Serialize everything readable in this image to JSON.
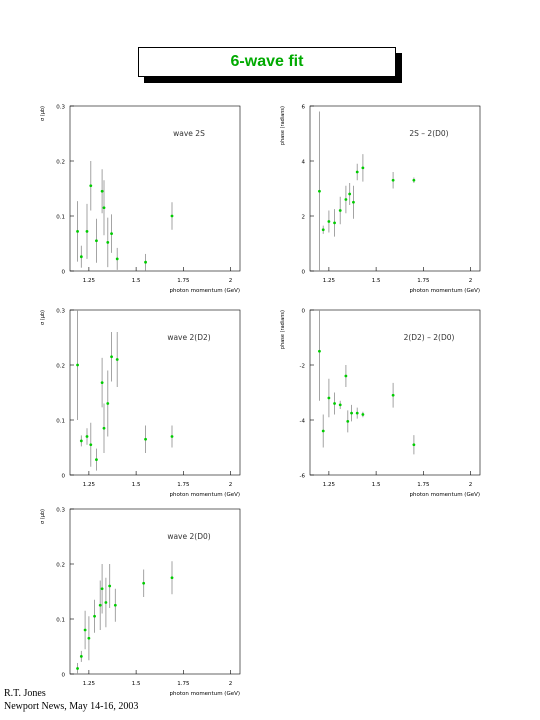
{
  "title": "6-wave fit",
  "footer": {
    "author": "R.T. Jones",
    "venue": "Newport News, May 14-16, 2003"
  },
  "colors": {
    "title": "#00aa00",
    "points": "#00cc00",
    "errorbars": "#999999",
    "axes": "#000000"
  },
  "chart_data": [
    {
      "type": "scatter",
      "annotation": "wave 2S",
      "xlabel": "photon momentum (GeV)",
      "ylabel": "σ (μb)",
      "xlim": [
        1.15,
        2.05
      ],
      "ylim": [
        0,
        0.3
      ],
      "xticks": [
        1.25,
        1.5,
        1.75,
        2
      ],
      "xtick_labels": [
        "1.25",
        "1.5",
        "1.75",
        "2"
      ],
      "yticks": [
        0,
        0.1,
        0.2,
        0.3
      ],
      "ytick_labels": [
        "0",
        "0.1",
        "0.2",
        "0.3"
      ],
      "points": [
        {
          "x": 1.19,
          "y": 0.072,
          "err": 0.055
        },
        {
          "x": 1.21,
          "y": 0.026,
          "err": 0.02
        },
        {
          "x": 1.24,
          "y": 0.072,
          "err": 0.05
        },
        {
          "x": 1.26,
          "y": 0.155,
          "err": 0.045
        },
        {
          "x": 1.29,
          "y": 0.055,
          "err": 0.04
        },
        {
          "x": 1.32,
          "y": 0.145,
          "err": 0.04
        },
        {
          "x": 1.33,
          "y": 0.115,
          "err": 0.05
        },
        {
          "x": 1.35,
          "y": 0.052,
          "err": 0.045
        },
        {
          "x": 1.37,
          "y": 0.068,
          "err": 0.035
        },
        {
          "x": 1.4,
          "y": 0.022,
          "err": 0.02
        },
        {
          "x": 1.55,
          "y": 0.016,
          "err": 0.015
        },
        {
          "x": 1.69,
          "y": 0.1,
          "err": 0.025
        }
      ]
    },
    {
      "type": "scatter",
      "annotation": "2S – 2(D0)",
      "xlabel": "photon momentum (GeV)",
      "ylabel": "phase (radians)",
      "xlim": [
        1.15,
        2.05
      ],
      "ylim": [
        0,
        6
      ],
      "xticks": [
        1.25,
        1.5,
        1.75,
        2
      ],
      "xtick_labels": [
        "1.25",
        "1.5",
        "1.75",
        "2"
      ],
      "yticks": [
        0,
        2,
        4,
        6
      ],
      "ytick_labels": [
        "0",
        "2",
        "4",
        "6"
      ],
      "points": [
        {
          "x": 1.2,
          "y": 2.9,
          "err": 2.9
        },
        {
          "x": 1.22,
          "y": 1.5,
          "err": 0.15
        },
        {
          "x": 1.25,
          "y": 1.8,
          "err": 0.4
        },
        {
          "x": 1.28,
          "y": 1.75,
          "err": 0.5
        },
        {
          "x": 1.31,
          "y": 2.2,
          "err": 0.5
        },
        {
          "x": 1.34,
          "y": 2.6,
          "err": 0.5
        },
        {
          "x": 1.36,
          "y": 2.8,
          "err": 0.4
        },
        {
          "x": 1.38,
          "y": 2.5,
          "err": 0.6
        },
        {
          "x": 1.4,
          "y": 3.6,
          "err": 0.3
        },
        {
          "x": 1.43,
          "y": 3.75,
          "err": 0.5
        },
        {
          "x": 1.59,
          "y": 3.3,
          "err": 0.3
        },
        {
          "x": 1.7,
          "y": 3.3,
          "err": 0.1
        }
      ]
    },
    {
      "type": "scatter",
      "annotation": "wave 2(D2)",
      "xlabel": "photon momentum (GeV)",
      "ylabel": "σ (μb)",
      "xlim": [
        1.15,
        2.05
      ],
      "ylim": [
        0,
        0.3
      ],
      "xticks": [
        1.25,
        1.5,
        1.75,
        2
      ],
      "xtick_labels": [
        "1.25",
        "1.5",
        "1.75",
        "2"
      ],
      "yticks": [
        0,
        0.1,
        0.2,
        0.3
      ],
      "ytick_labels": [
        "0",
        "0.1",
        "0.2",
        "0.3"
      ],
      "points": [
        {
          "x": 1.19,
          "y": 0.2,
          "err": 0.1
        },
        {
          "x": 1.21,
          "y": 0.062,
          "err": 0.01
        },
        {
          "x": 1.24,
          "y": 0.07,
          "err": 0.015
        },
        {
          "x": 1.26,
          "y": 0.055,
          "err": 0.04
        },
        {
          "x": 1.29,
          "y": 0.028,
          "err": 0.02
        },
        {
          "x": 1.32,
          "y": 0.168,
          "err": 0.045
        },
        {
          "x": 1.33,
          "y": 0.085,
          "err": 0.045
        },
        {
          "x": 1.35,
          "y": 0.13,
          "err": 0.06
        },
        {
          "x": 1.37,
          "y": 0.215,
          "err": 0.045
        },
        {
          "x": 1.4,
          "y": 0.21,
          "err": 0.05
        },
        {
          "x": 1.55,
          "y": 0.065,
          "err": 0.025
        },
        {
          "x": 1.69,
          "y": 0.07,
          "err": 0.02
        }
      ]
    },
    {
      "type": "scatter",
      "annotation": "2(D2) – 2(D0)",
      "xlabel": "photon momentum (GeV)",
      "ylabel": "phase (radians)",
      "xlim": [
        1.15,
        2.05
      ],
      "ylim": [
        -6,
        0
      ],
      "xticks": [
        1.25,
        1.5,
        1.75,
        2
      ],
      "xtick_labels": [
        "1.25",
        "1.5",
        "1.75",
        "2"
      ],
      "yticks": [
        -6,
        -4,
        -2,
        0
      ],
      "ytick_labels": [
        "-6",
        "-4",
        "-2",
        "0"
      ],
      "points": [
        {
          "x": 1.2,
          "y": -1.5,
          "err": 1.8
        },
        {
          "x": 1.22,
          "y": -4.4,
          "err": 0.6
        },
        {
          "x": 1.25,
          "y": -3.2,
          "err": 0.7
        },
        {
          "x": 1.28,
          "y": -3.4,
          "err": 0.4
        },
        {
          "x": 1.31,
          "y": -3.45,
          "err": 0.15
        },
        {
          "x": 1.34,
          "y": -2.4,
          "err": 0.4
        },
        {
          "x": 1.35,
          "y": -4.05,
          "err": 0.4
        },
        {
          "x": 1.37,
          "y": -3.75,
          "err": 0.3
        },
        {
          "x": 1.4,
          "y": -3.75,
          "err": 0.2
        },
        {
          "x": 1.43,
          "y": -3.8,
          "err": 0.1
        },
        {
          "x": 1.59,
          "y": -3.1,
          "err": 0.45
        },
        {
          "x": 1.7,
          "y": -4.9,
          "err": 0.35
        }
      ]
    },
    {
      "type": "scatter",
      "annotation": "wave 2(D0)",
      "xlabel": "photon momentum (GeV)",
      "ylabel": "σ (μb)",
      "xlim": [
        1.15,
        2.05
      ],
      "ylim": [
        0,
        0.3
      ],
      "xticks": [
        1.25,
        1.5,
        1.75,
        2
      ],
      "xtick_labels": [
        "1.25",
        "1.5",
        "1.75",
        "2"
      ],
      "yticks": [
        0,
        0.1,
        0.2,
        0.3
      ],
      "ytick_labels": [
        "0",
        "0.1",
        "0.2",
        "0.3"
      ],
      "points": [
        {
          "x": 1.19,
          "y": 0.01,
          "err": 0.01
        },
        {
          "x": 1.21,
          "y": 0.032,
          "err": 0.01
        },
        {
          "x": 1.23,
          "y": 0.08,
          "err": 0.035
        },
        {
          "x": 1.25,
          "y": 0.065,
          "err": 0.04
        },
        {
          "x": 1.28,
          "y": 0.105,
          "err": 0.03
        },
        {
          "x": 1.31,
          "y": 0.125,
          "err": 0.045
        },
        {
          "x": 1.32,
          "y": 0.155,
          "err": 0.045
        },
        {
          "x": 1.34,
          "y": 0.13,
          "err": 0.045
        },
        {
          "x": 1.36,
          "y": 0.16,
          "err": 0.04
        },
        {
          "x": 1.39,
          "y": 0.125,
          "err": 0.03
        },
        {
          "x": 1.54,
          "y": 0.165,
          "err": 0.025
        },
        {
          "x": 1.69,
          "y": 0.175,
          "err": 0.03
        }
      ]
    }
  ]
}
